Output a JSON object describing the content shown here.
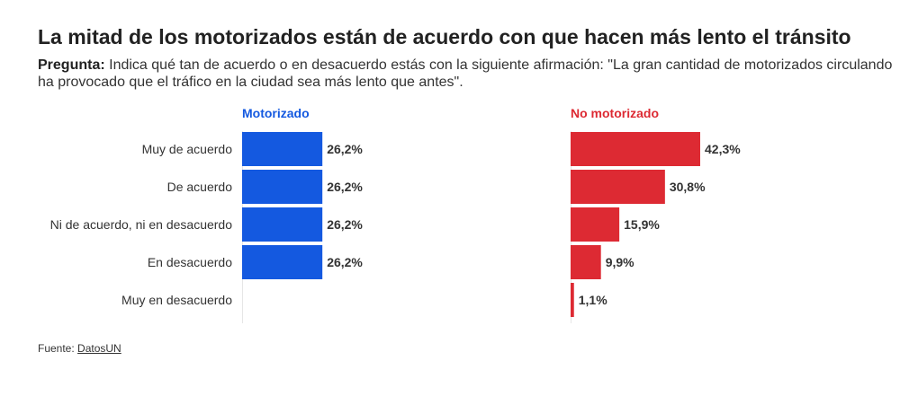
{
  "title": "La mitad de los motorizados están de acuerdo con que hacen más lento el tránsito",
  "question": {
    "label": "Pregunta:",
    "text": "Indica qué tan de acuerdo o en desacuerdo estás con la siguiente afirmación: \"La gran cantidad de motorizados circulando ha provocado que el tráfico en la ciudad sea más lento que antes\"."
  },
  "source": {
    "label": "Fuente:",
    "link_text": "DatosUN"
  },
  "colors": {
    "motorizado": "#1459e0",
    "no_motorizado": "#dd2a33",
    "axis": "#e6e6e6"
  },
  "chart_data": {
    "type": "bar",
    "orientation": "horizontal",
    "title": "La mitad de los motorizados están de acuerdo con que hacen más lento el tránsito",
    "xlabel": "",
    "ylabel": "",
    "xlim": [
      0,
      50
    ],
    "grid": false,
    "legend": "none",
    "categories": [
      "Muy de acuerdo",
      "De acuerdo",
      "Ni de acuerdo, ni en desacuerdo",
      "En desacuerdo",
      "Muy en desacuerdo"
    ],
    "series": [
      {
        "name": "Motorizado",
        "color": "#1459e0",
        "values": [
          26.2,
          26.2,
          26.2,
          26.2,
          null
        ],
        "labels": [
          "26,2%",
          "26,2%",
          "26,2%",
          "26,2%",
          ""
        ]
      },
      {
        "name": "No motorizado",
        "color": "#dd2a33",
        "values": [
          42.3,
          30.8,
          15.9,
          9.9,
          1.1
        ],
        "labels": [
          "42,3%",
          "30,8%",
          "15,9%",
          "9,9%",
          "1,1%"
        ]
      }
    ]
  }
}
